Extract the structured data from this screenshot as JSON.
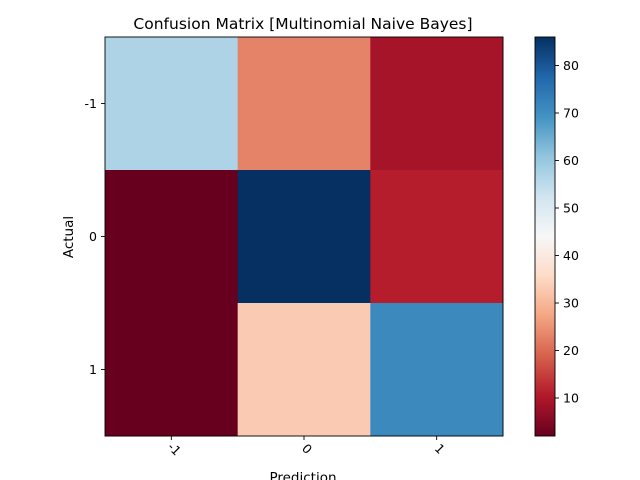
{
  "chart_data": {
    "type": "heatmap",
    "title": "Confusion Matrix [Multinomial Naive Bayes]",
    "xlabel": "Prediction",
    "ylabel": "Actual",
    "x_categories": [
      "-1",
      "0",
      "1"
    ],
    "y_categories": [
      "-1",
      "0",
      "1"
    ],
    "values": [
      [
        57,
        23,
        9
      ],
      [
        2,
        86,
        11
      ],
      [
        2,
        33,
        71
      ]
    ],
    "colormap": "RdBu",
    "colorbar": {
      "range": [
        2,
        86
      ],
      "ticks": [
        10,
        20,
        30,
        40,
        50,
        60,
        70,
        80
      ]
    },
    "grid": false
  }
}
